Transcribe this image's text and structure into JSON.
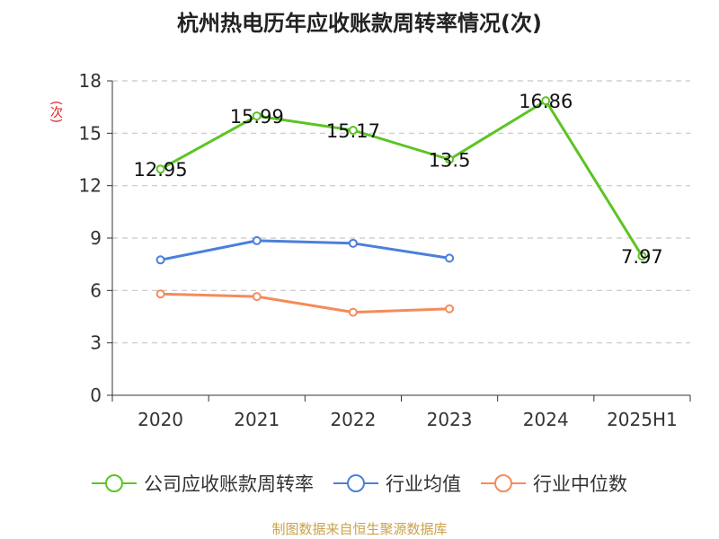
{
  "chart_data": {
    "type": "line",
    "title": "杭州热电历年应收账款周转率情况(次)",
    "ylabel": "(次)",
    "xlabel": "",
    "categories": [
      "2020",
      "2021",
      "2022",
      "2023",
      "2024",
      "2025H1"
    ],
    "ylim": [
      0,
      18
    ],
    "yticks": [
      0,
      3,
      6,
      9,
      12,
      15,
      18
    ],
    "grid": true,
    "legend_position": "bottom",
    "series": [
      {
        "name": "公司应收账款周转率",
        "color": "#5cc423",
        "values": [
          12.95,
          15.99,
          15.17,
          13.5,
          16.86,
          7.97
        ],
        "show_labels": true
      },
      {
        "name": "行业均值",
        "color": "#4b7fdc",
        "values": [
          7.75,
          8.85,
          8.7,
          7.85,
          null,
          null
        ],
        "show_labels": false
      },
      {
        "name": "行业中位数",
        "color": "#f58b5b",
        "values": [
          5.8,
          5.65,
          4.75,
          4.95,
          null,
          null
        ],
        "show_labels": false
      }
    ]
  },
  "source": "制图数据来自恒生聚源数据库"
}
